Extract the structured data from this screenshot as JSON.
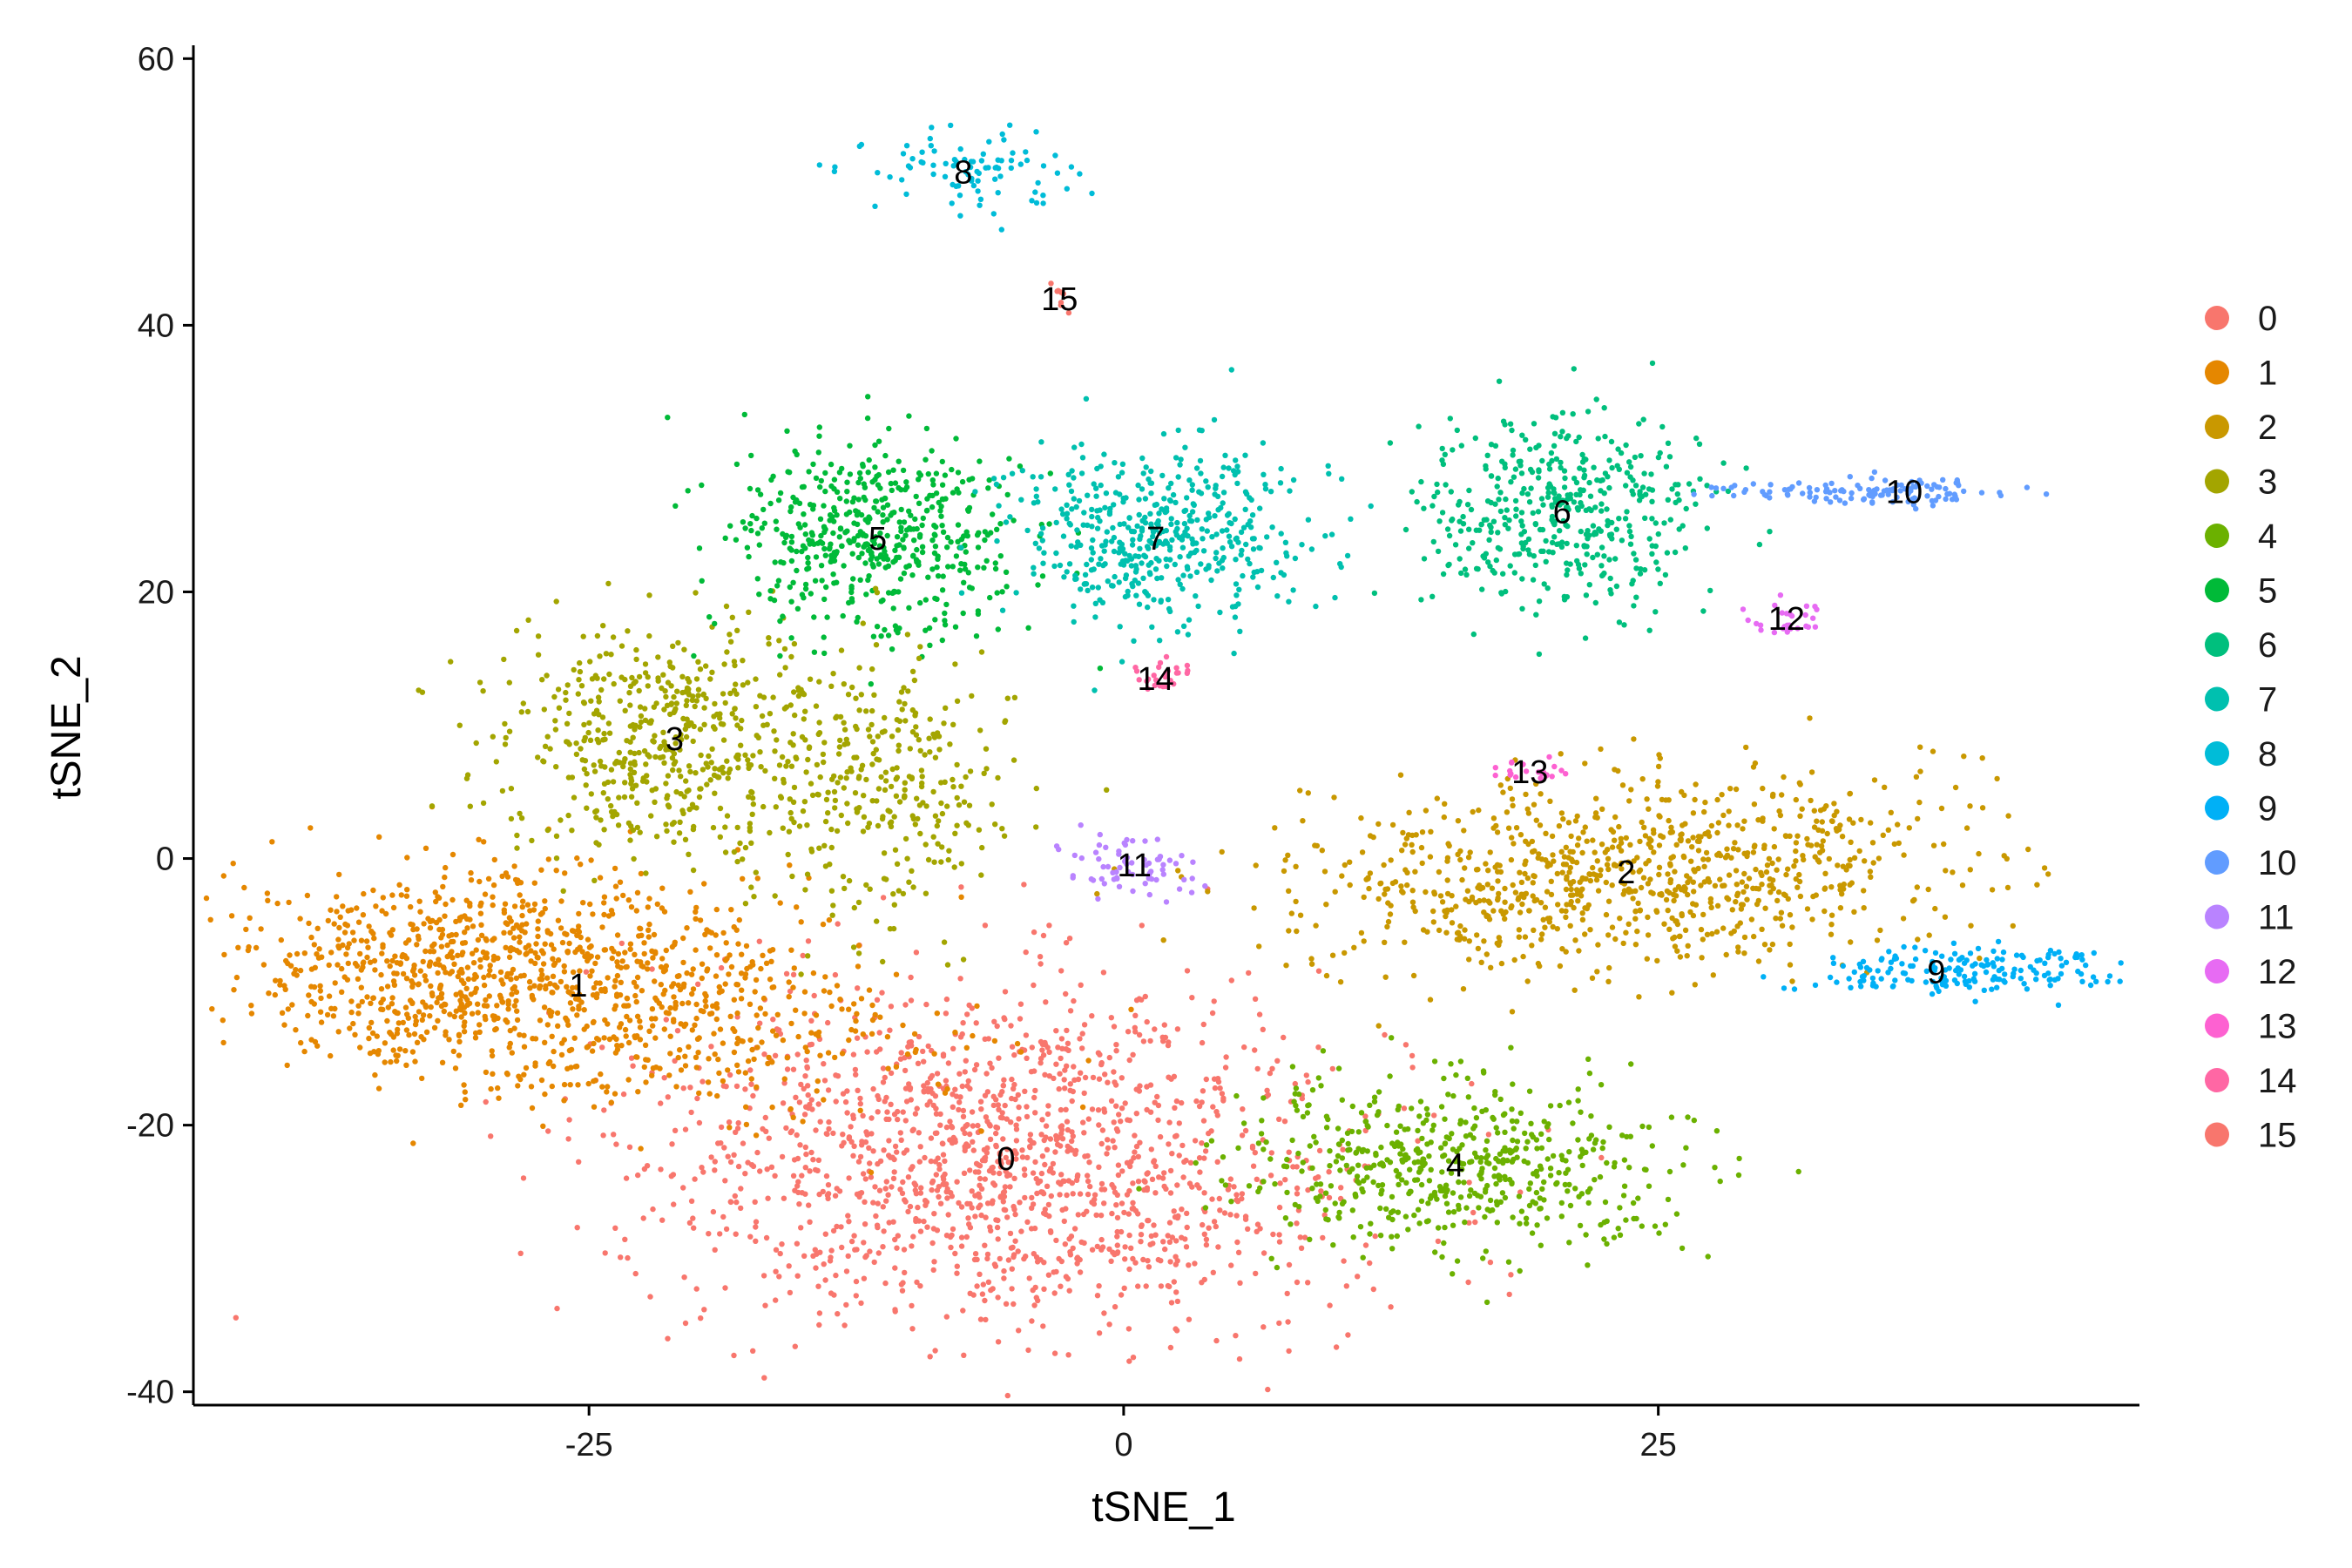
{
  "chart_data": {
    "type": "scatter",
    "xlabel": "tSNE_1",
    "ylabel": "tSNE_2",
    "xlim": [
      -43.5,
      47.5
    ],
    "ylim": [
      -41,
      61
    ],
    "x_ticks": [
      -25,
      0,
      25
    ],
    "y_ticks": [
      -40,
      -20,
      0,
      20,
      40,
      60
    ],
    "x_tick_labels": [
      "-25",
      "0",
      "25"
    ],
    "y_tick_labels": [
      "-40",
      "-20",
      "0",
      "20",
      "40",
      "60"
    ],
    "grid": false,
    "legend_position": "right",
    "clusters": [
      {
        "name": "0",
        "color": "#F8766D",
        "center": [
          -5.5,
          -22.5
        ]
      },
      {
        "name": "1",
        "color": "#E58700",
        "center": [
          -25.5,
          -9.5
        ]
      },
      {
        "name": "2",
        "color": "#C99800",
        "center": [
          23.5,
          -1
        ]
      },
      {
        "name": "3",
        "color": "#A3A500",
        "center": [
          -21,
          9
        ]
      },
      {
        "name": "4",
        "color": "#6BB100",
        "center": [
          15.5,
          -23
        ]
      },
      {
        "name": "5",
        "color": "#00BA38",
        "center": [
          -11.5,
          24
        ]
      },
      {
        "name": "6",
        "color": "#00BF7D",
        "center": [
          20.5,
          26
        ]
      },
      {
        "name": "7",
        "color": "#00C0AF",
        "center": [
          1.5,
          24
        ]
      },
      {
        "name": "8",
        "color": "#00BCD8",
        "center": [
          -7.5,
          51.5
        ]
      },
      {
        "name": "9",
        "color": "#00B0F6",
        "center": [
          38,
          -8.5
        ]
      },
      {
        "name": "10",
        "color": "#619CFF",
        "center": [
          36.5,
          27.5
        ]
      },
      {
        "name": "11",
        "color": "#B983FF",
        "center": [
          0.5,
          -0.5
        ]
      },
      {
        "name": "12",
        "color": "#E76BF3",
        "center": [
          31,
          18
        ]
      },
      {
        "name": "13",
        "color": "#FD61D1",
        "center": [
          19,
          6.5
        ]
      },
      {
        "name": "14",
        "color": "#FF67A4",
        "center": [
          1.5,
          13.5
        ]
      },
      {
        "name": "15",
        "color": "#F8766D",
        "center": [
          -3,
          42
        ]
      }
    ]
  },
  "legend": {
    "items": [
      {
        "label": "0",
        "color": "#F8766D"
      },
      {
        "label": "1",
        "color": "#E58700"
      },
      {
        "label": "2",
        "color": "#C99800"
      },
      {
        "label": "3",
        "color": "#A3A500"
      },
      {
        "label": "4",
        "color": "#6BB100"
      },
      {
        "label": "5",
        "color": "#00BA38"
      },
      {
        "label": "6",
        "color": "#00BF7D"
      },
      {
        "label": "7",
        "color": "#00C0AF"
      },
      {
        "label": "8",
        "color": "#00BCD8"
      },
      {
        "label": "9",
        "color": "#00B0F6"
      },
      {
        "label": "10",
        "color": "#619CFF"
      },
      {
        "label": "11",
        "color": "#B983FF"
      },
      {
        "label": "12",
        "color": "#E76BF3"
      },
      {
        "label": "13",
        "color": "#FD61D1"
      },
      {
        "label": "14",
        "color": "#FF67A4"
      },
      {
        "label": "15",
        "color": "#F8766D"
      }
    ]
  }
}
